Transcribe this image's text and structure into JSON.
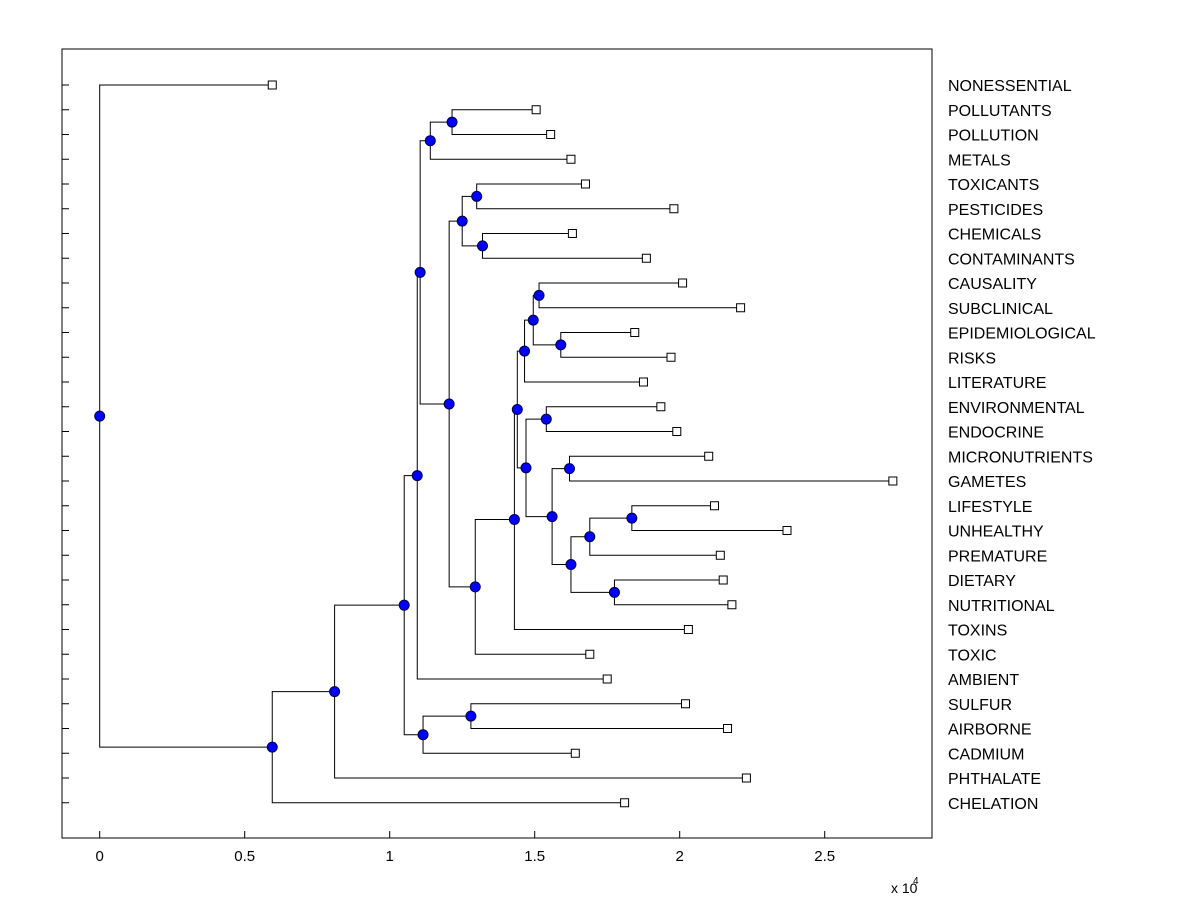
{
  "chart_data": {
    "type": "dendrogram",
    "orientation": "horizontal",
    "x_tick_labels": [
      "0",
      "0.5",
      "1",
      "1.5",
      "2",
      "2.5"
    ],
    "x_ticks": [
      0,
      5000,
      10000,
      15000,
      20000,
      25000
    ],
    "x_exponent_base": "x 10",
    "x_exponent_power": "4",
    "xlim": [
      -1300,
      28700
    ],
    "colors": {
      "node": "#0000ff",
      "node_edge": "#000040",
      "line": "#000000",
      "leaf_marker_fill": "#ffffff"
    },
    "leaves": [
      {
        "name": "NONESSENTIAL",
        "value": 5950
      },
      {
        "name": "POLLUTANTS",
        "value": 15050
      },
      {
        "name": "POLLUTION",
        "value": 15550
      },
      {
        "name": "METALS",
        "value": 16250
      },
      {
        "name": "TOXICANTS",
        "value": 16750
      },
      {
        "name": "PESTICIDES",
        "value": 19800
      },
      {
        "name": "CHEMICALS",
        "value": 16300
      },
      {
        "name": "CONTAMINANTS",
        "value": 18850
      },
      {
        "name": "CAUSALITY",
        "value": 20100
      },
      {
        "name": "SUBCLINICAL",
        "value": 22100
      },
      {
        "name": "EPIDEMIOLOGICAL",
        "value": 18450
      },
      {
        "name": "RISKS",
        "value": 19700
      },
      {
        "name": "LITERATURE",
        "value": 18750
      },
      {
        "name": "ENVIRONMENTAL",
        "value": 19350
      },
      {
        "name": "ENDOCRINE",
        "value": 19900
      },
      {
        "name": "MICRONUTRIENTS",
        "value": 21000
      },
      {
        "name": "GAMETES",
        "value": 27350
      },
      {
        "name": "LIFESTYLE",
        "value": 21200
      },
      {
        "name": "UNHEALTHY",
        "value": 23700
      },
      {
        "name": "PREMATURE",
        "value": 21400
      },
      {
        "name": "DIETARY",
        "value": 21500
      },
      {
        "name": "NUTRITIONAL",
        "value": 21800
      },
      {
        "name": "TOXINS",
        "value": 20300
      },
      {
        "name": "TOXIC",
        "value": 16900
      },
      {
        "name": "AMBIENT",
        "value": 17500
      },
      {
        "name": "SULFUR",
        "value": 20200
      },
      {
        "name": "AIRBORNE",
        "value": 21650
      },
      {
        "name": "CADMIUM",
        "value": 16400
      },
      {
        "name": "PHTHALATE",
        "value": 22300
      },
      {
        "name": "CHELATION",
        "value": 18100
      }
    ],
    "nodes": [
      {
        "id": "n1",
        "value": 12150,
        "children": [
          "L1",
          "L2"
        ]
      },
      {
        "id": "n2",
        "value": 11400,
        "children": [
          "n1",
          "L3"
        ]
      },
      {
        "id": "n3",
        "value": 13000,
        "children": [
          "L4",
          "L5"
        ]
      },
      {
        "id": "n4",
        "value": 13200,
        "children": [
          "L6",
          "L7"
        ]
      },
      {
        "id": "n5",
        "value": 12500,
        "children": [
          "n3",
          "n4"
        ]
      },
      {
        "id": "n6",
        "value": 15150,
        "children": [
          "L8",
          "L9"
        ]
      },
      {
        "id": "n7",
        "value": 15900,
        "children": [
          "L10",
          "L11"
        ]
      },
      {
        "id": "n8",
        "value": 14950,
        "children": [
          "n6",
          "n7"
        ]
      },
      {
        "id": "n9",
        "value": 14650,
        "children": [
          "n8",
          "L12"
        ]
      },
      {
        "id": "n10",
        "value": 15400,
        "children": [
          "L13",
          "L14"
        ]
      },
      {
        "id": "n11",
        "value": 16200,
        "children": [
          "L15",
          "L16"
        ]
      },
      {
        "id": "n12",
        "value": 18350,
        "children": [
          "L17",
          "L18"
        ]
      },
      {
        "id": "n13",
        "value": 16900,
        "children": [
          "n12",
          "L19"
        ]
      },
      {
        "id": "n14",
        "value": 17750,
        "children": [
          "L20",
          "L21"
        ]
      },
      {
        "id": "n15",
        "value": 16250,
        "children": [
          "n13",
          "n14"
        ]
      },
      {
        "id": "n16",
        "value": 15600,
        "children": [
          "n11",
          "n15"
        ]
      },
      {
        "id": "n17",
        "value": 14700,
        "children": [
          "n10",
          "n16"
        ]
      },
      {
        "id": "n18",
        "value": 14400,
        "children": [
          "n9",
          "n17"
        ]
      },
      {
        "id": "n19",
        "value": 14300,
        "children": [
          "n18",
          "L22"
        ]
      },
      {
        "id": "n20",
        "value": 12950,
        "children": [
          "n19",
          "L23"
        ]
      },
      {
        "id": "n21",
        "value": 12050,
        "children": [
          "n5",
          "n20"
        ]
      },
      {
        "id": "n22",
        "value": 11050,
        "children": [
          "n2",
          "n21"
        ]
      },
      {
        "id": "n23",
        "value": 10950,
        "children": [
          "n22",
          "L24"
        ]
      },
      {
        "id": "n24",
        "value": 12800,
        "children": [
          "L25",
          "L26"
        ]
      },
      {
        "id": "n25",
        "value": 11150,
        "children": [
          "n24",
          "L27"
        ]
      },
      {
        "id": "n26",
        "value": 10500,
        "children": [
          "n23",
          "n25"
        ]
      },
      {
        "id": "n27",
        "value": 8100,
        "children": [
          "n26",
          "L28"
        ]
      },
      {
        "id": "n28",
        "value": 5950,
        "children": [
          "n27",
          "L29"
        ]
      },
      {
        "id": "n29",
        "value": 0,
        "children": [
          "L0",
          "n28"
        ]
      }
    ]
  }
}
